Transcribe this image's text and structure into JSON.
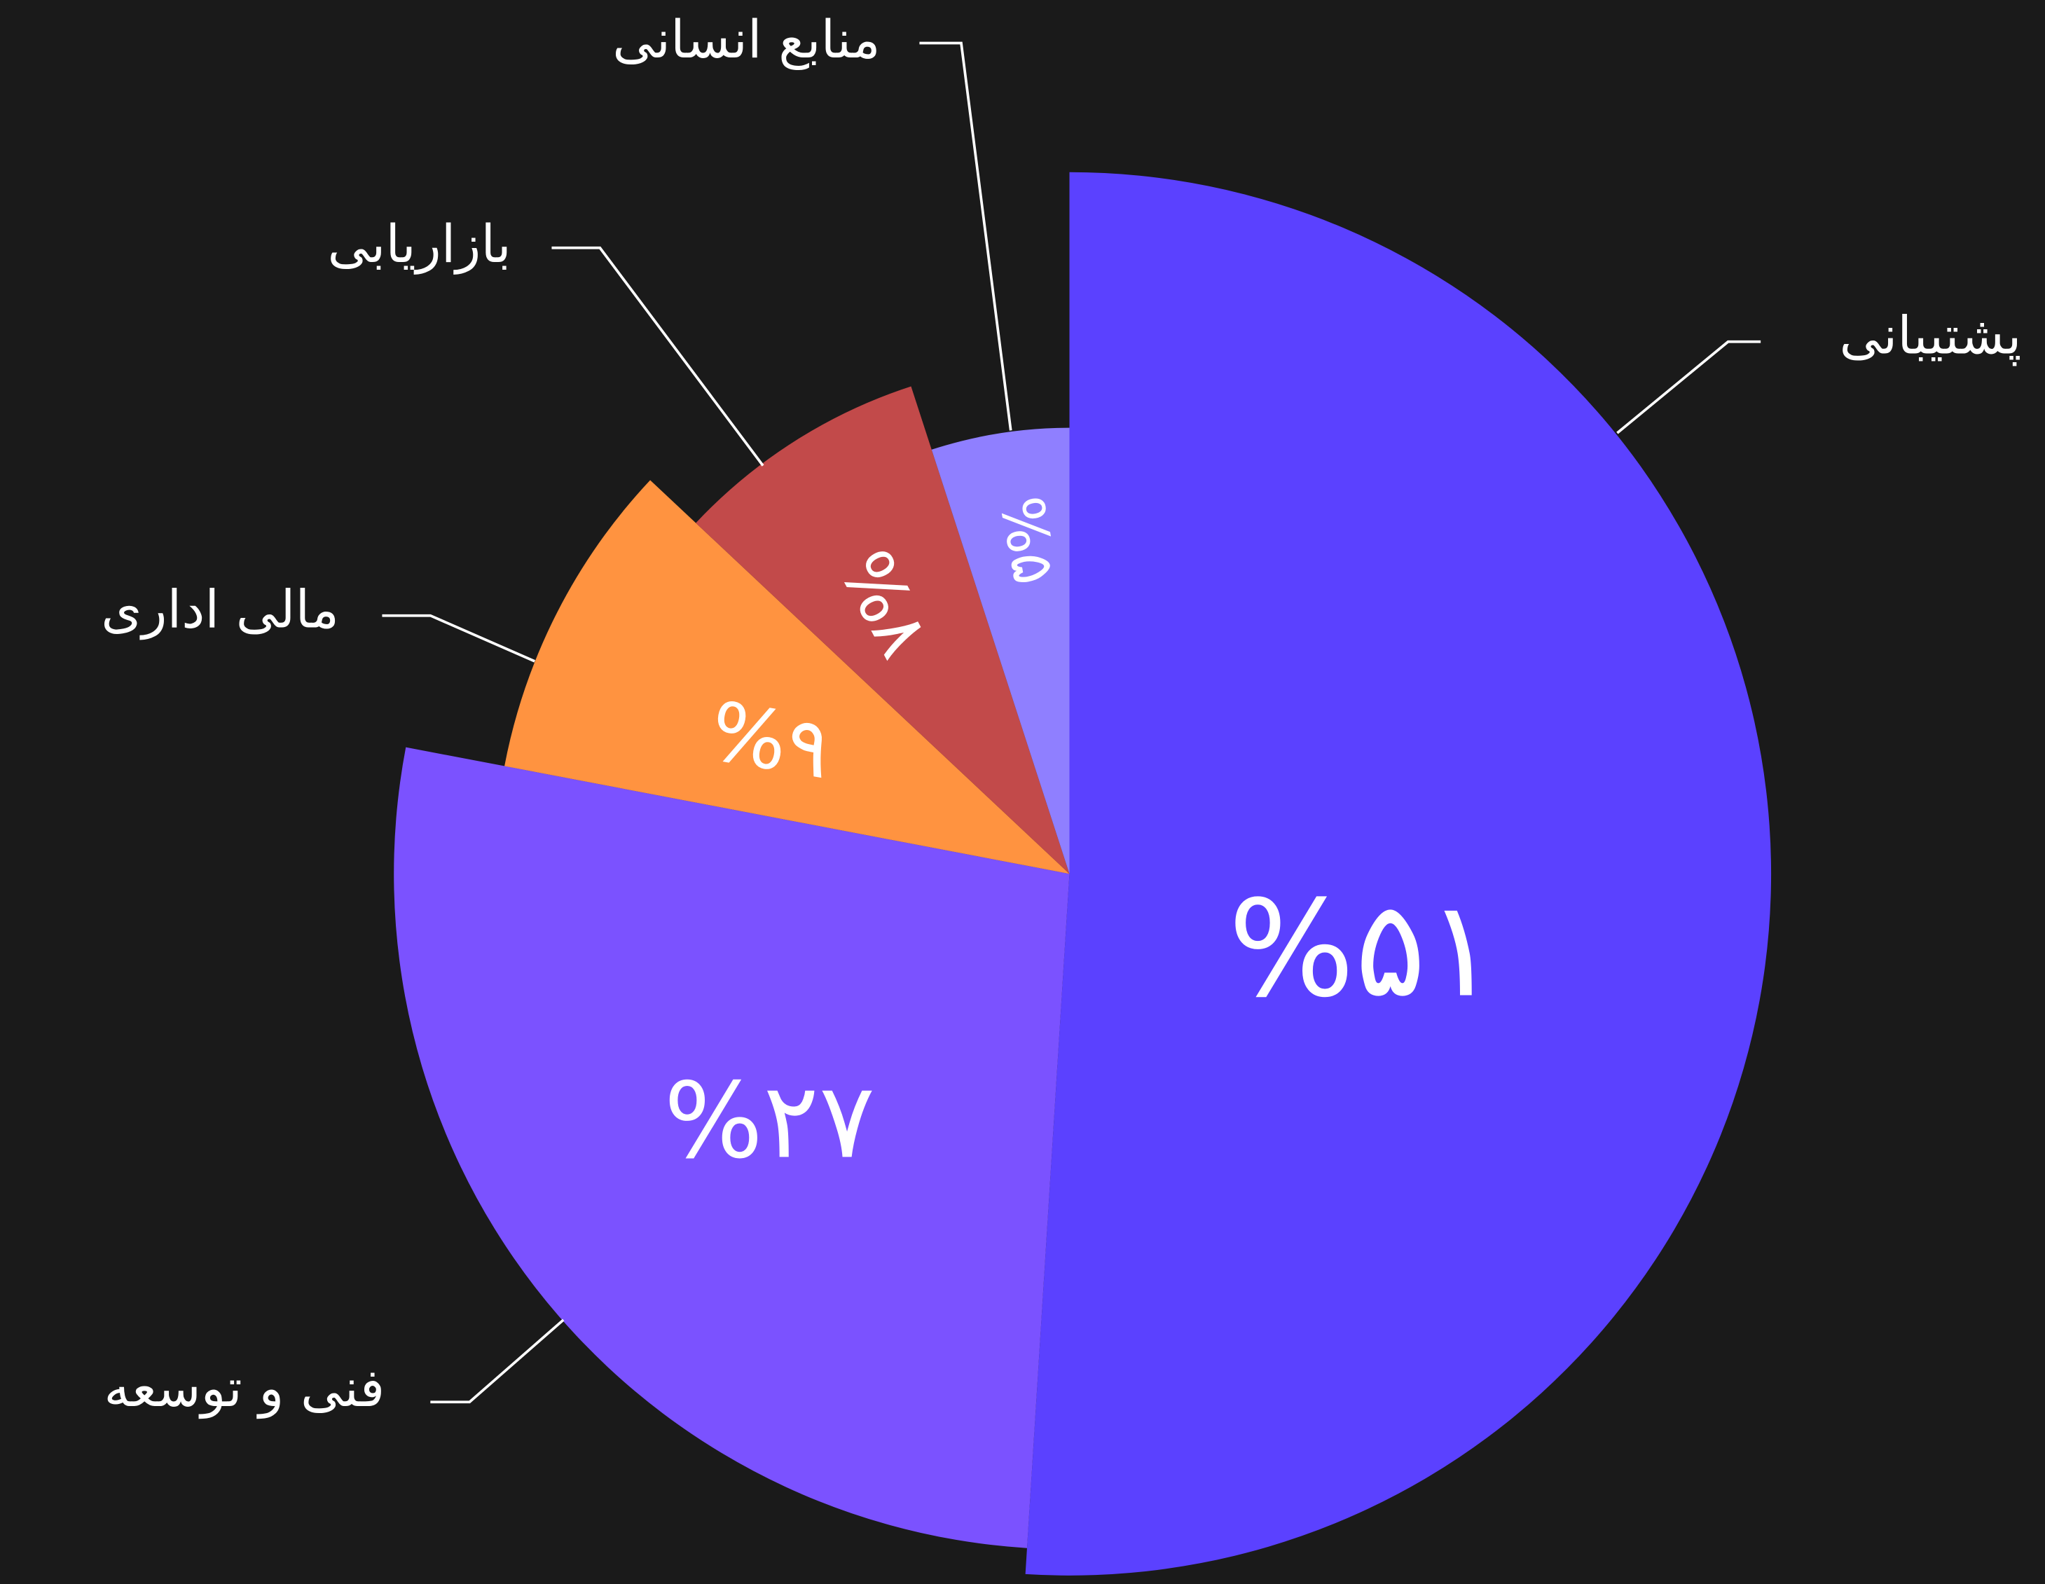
{
  "chart_data": {
    "type": "pie",
    "categories": [
      "پشتیبانی",
      "فنی و توسعه",
      "مالی اداری",
      "بازاریابی",
      "منابع انسانی"
    ],
    "values": [
      51,
      27,
      9,
      8,
      5
    ],
    "value_labels": [
      "%۵۱",
      "%۲۷",
      "%۹",
      "%۸",
      "%۵"
    ],
    "colors": [
      "#5b41ff",
      "#7b52ff",
      "#ff9340",
      "#c24a4a",
      "#8f7fff"
    ]
  }
}
